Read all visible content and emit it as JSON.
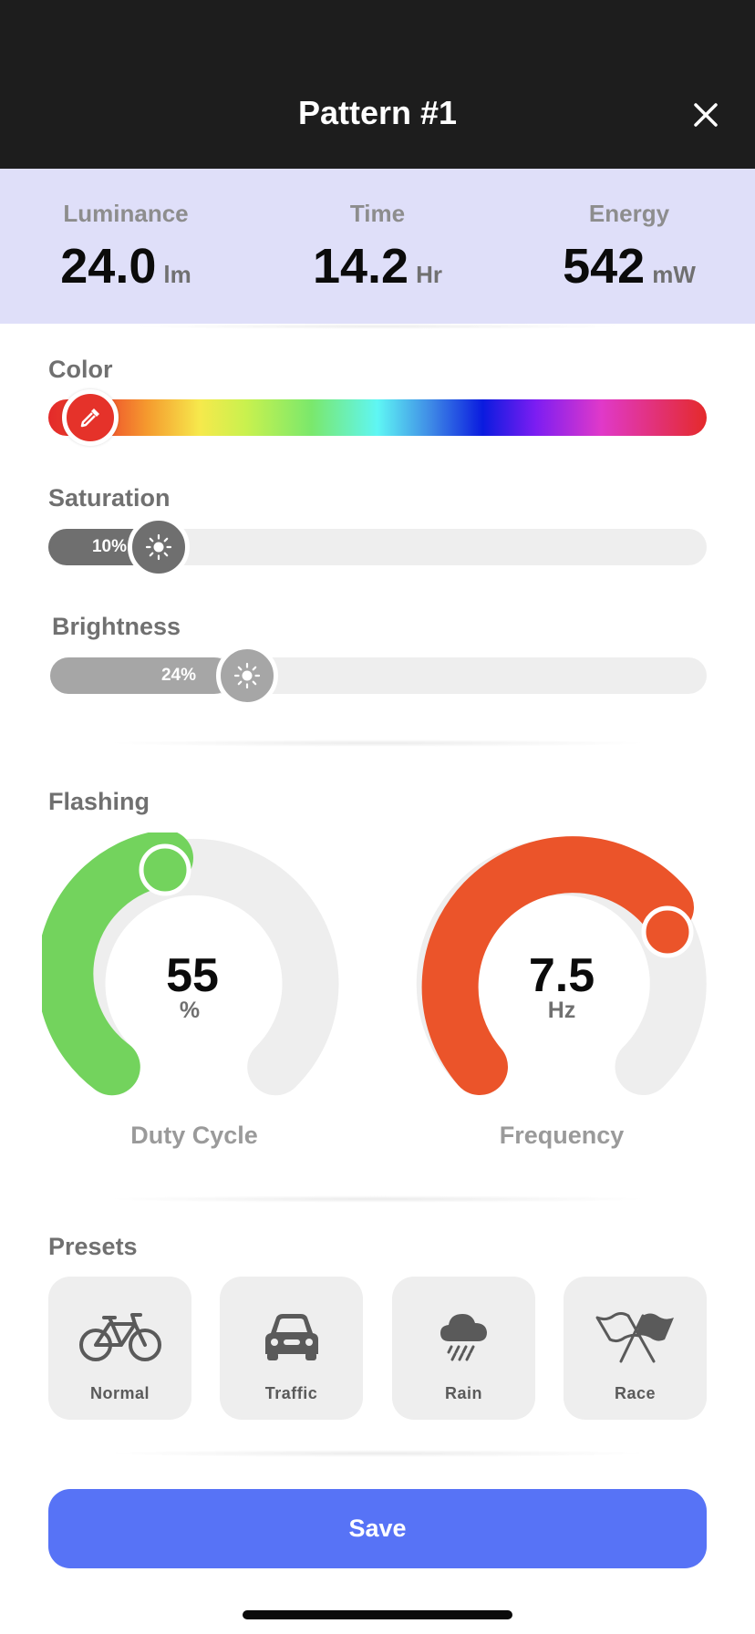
{
  "header": {
    "title": "Pattern #1",
    "close_icon": "close-icon"
  },
  "stats": [
    {
      "label": "Luminance",
      "value": "24.0",
      "unit": "lm"
    },
    {
      "label": "Time",
      "value": "14.2",
      "unit": "Hr"
    },
    {
      "label": "Energy",
      "value": "542",
      "unit": "mW"
    }
  ],
  "color": {
    "label": "Color",
    "selected_color": "#e5322a",
    "thumb_icon": "eyedropper-icon"
  },
  "saturation": {
    "label": "Saturation",
    "value_text": "10%",
    "value": 0.1,
    "fill_color": "#6f6f6f",
    "thumb_icon": "sun-icon"
  },
  "brightness": {
    "label": "Brightness",
    "value_text": "24%",
    "value": 0.24,
    "fill_color": "#a6a6a6",
    "thumb_icon": "sun-icon"
  },
  "flashing": {
    "label": "Flashing",
    "duty_cycle": {
      "value": "55",
      "unit": "%",
      "caption": "Duty Cycle",
      "color": "#73d35d",
      "level": 0.55
    },
    "frequency": {
      "value": "7.5",
      "unit": "Hz",
      "caption": "Frequency",
      "color": "#eb542a",
      "level": 0.75
    }
  },
  "presets": {
    "label": "Presets",
    "items": [
      {
        "label": "Normal",
        "icon": "bicycle-icon"
      },
      {
        "label": "Traffic",
        "icon": "car-icon"
      },
      {
        "label": "Rain",
        "icon": "rain-cloud-icon"
      },
      {
        "label": "Race",
        "icon": "race-flags-icon"
      }
    ]
  },
  "save_label": "Save",
  "colors": {
    "accent": "#5773f6",
    "header_bg": "#1d1d1d",
    "stats_bg": "#dfdff9"
  }
}
